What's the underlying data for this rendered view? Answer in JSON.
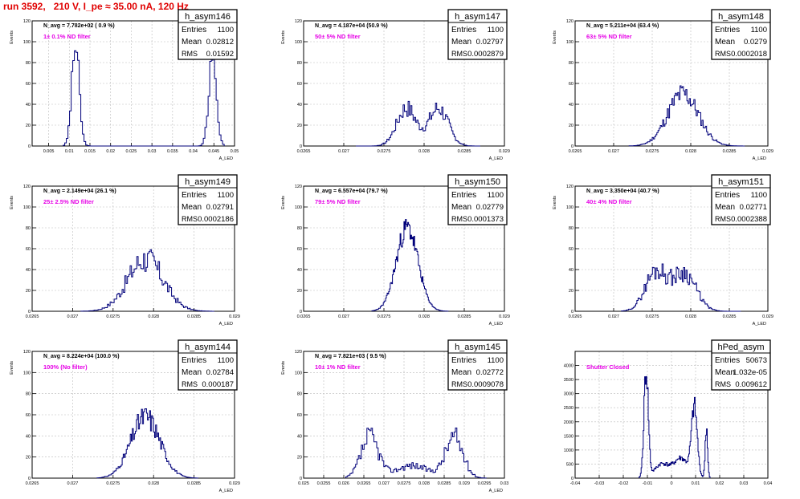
{
  "header": {
    "run_title": "run 3592,   210 V, I_pe ≈ 35.00 nA, 120 Hz"
  },
  "colors": {
    "title": "#e00000",
    "filter_label": "#e600e6",
    "histogram": "#00007a",
    "grid": "#bbbbbb",
    "axis": "#000000"
  },
  "chart_data": [
    {
      "type": "histogram",
      "name": "h_asym146",
      "navg": "N_avg = 7.782e+02 ( 0.9 %)",
      "filter": "1± 0.1% ND filter",
      "stats": {
        "entries_label": "Entries",
        "entries": "1100",
        "mean_label": "Mean",
        "mean": "0.02812",
        "rms_label": "RMS",
        "rms": "0.01592"
      },
      "xlabel": "A_LED",
      "ylabel": "Events",
      "xlim": [
        0.001,
        0.05
      ],
      "ylim": [
        0,
        120
      ],
      "xticks": [
        0.005,
        0.01,
        0.015,
        0.02,
        0.025,
        0.03,
        0.035,
        0.04,
        0.045,
        0.05
      ],
      "xtick_labels": [
        "0.005",
        "0.01",
        "0.015",
        "0.02",
        "0.025",
        "0.03",
        "0.035",
        "0.04",
        "0.045",
        "0.05"
      ],
      "yticks": [
        0,
        20,
        40,
        60,
        80,
        100,
        120
      ],
      "ytick_labels": [
        "0",
        "20",
        "40",
        "60",
        "80",
        "100",
        "120"
      ],
      "peaks": [
        {
          "center": 0.0115,
          "sigma": 0.0009,
          "height": 96
        },
        {
          "center": 0.0447,
          "sigma": 0.0009,
          "height": 92
        }
      ],
      "xrange": [
        0.0085,
        0.0475
      ],
      "bins": 100,
      "noise": 0.18,
      "seed": 3
    },
    {
      "type": "histogram",
      "name": "h_asym147",
      "navg": "N_avg = 4.187e+04 (50.9 %)",
      "filter": "50± 5% ND filter",
      "stats": {
        "entries_label": "Entries",
        "entries": "1100",
        "mean_label": "Mean",
        "mean": "0.02797",
        "rms_label": "RMS",
        "rms": "0.0002879"
      },
      "xlabel": "A_LED",
      "ylabel": "Events",
      "xlim": [
        0.0265,
        0.029
      ],
      "ylim": [
        0,
        120
      ],
      "xticks": [
        0.0265,
        0.027,
        0.0275,
        0.028,
        0.0285,
        0.029
      ],
      "xtick_labels": [
        "0.0265",
        "0.027",
        "0.0275",
        "0.028",
        "0.0285",
        "0.029"
      ],
      "yticks": [
        0,
        20,
        40,
        60,
        80,
        100,
        120
      ],
      "ytick_labels": [
        "0",
        "20",
        "40",
        "60",
        "80",
        "100",
        "120"
      ],
      "peaks": [
        {
          "center": 0.02778,
          "sigma": 0.00012,
          "height": 36
        },
        {
          "center": 0.02818,
          "sigma": 0.00012,
          "height": 36
        }
      ],
      "xrange": [
        0.02715,
        0.0287
      ],
      "bins": 100,
      "noise": 0.25,
      "seed": 7
    },
    {
      "type": "histogram",
      "name": "h_asym148",
      "navg": "N_avg = 5.211e+04 (63.4 %)",
      "filter": "63± 5% ND filter",
      "stats": {
        "entries_label": "Entries",
        "entries": "1100",
        "mean_label": "Mean",
        "mean": "0.0279",
        "rms_label": "RMS",
        "rms": "0.0002018"
      },
      "xlabel": "A_LED",
      "ylabel": "Events",
      "xlim": [
        0.0265,
        0.029
      ],
      "ylim": [
        0,
        120
      ],
      "xticks": [
        0.0265,
        0.027,
        0.0275,
        0.028,
        0.0285,
        0.029
      ],
      "xtick_labels": [
        "0.0265",
        "0.027",
        "0.0275",
        "0.028",
        "0.0285",
        "0.029"
      ],
      "yticks": [
        0,
        20,
        40,
        60,
        80,
        100,
        120
      ],
      "ytick_labels": [
        "0",
        "20",
        "40",
        "60",
        "80",
        "100",
        "120"
      ],
      "peaks": [
        {
          "center": 0.0279,
          "sigma": 0.0002,
          "height": 50
        }
      ],
      "xrange": [
        0.0272,
        0.0287
      ],
      "bins": 100,
      "noise": 0.22,
      "seed": 11
    },
    {
      "type": "histogram",
      "name": "h_asym149",
      "navg": "N_avg = 2.149e+04 (26.1 %)",
      "filter": "25± 2.5% ND filter",
      "stats": {
        "entries_label": "Entries",
        "entries": "1100",
        "mean_label": "Mean",
        "mean": "0.02791",
        "rms_label": "RMS",
        "rms": "0.0002186"
      },
      "xlabel": "A_LED",
      "ylabel": "Events",
      "xlim": [
        0.0265,
        0.029
      ],
      "ylim": [
        0,
        120
      ],
      "xticks": [
        0.0265,
        0.027,
        0.0275,
        0.028,
        0.0285,
        0.029
      ],
      "xtick_labels": [
        "0.0265",
        "0.027",
        "0.0275",
        "0.028",
        "0.0285",
        "0.029"
      ],
      "yticks": [
        0,
        20,
        40,
        60,
        80,
        100,
        120
      ],
      "ytick_labels": [
        "0",
        "20",
        "40",
        "60",
        "80",
        "100",
        "120"
      ],
      "peaks": [
        {
          "center": 0.0279,
          "sigma": 0.00022,
          "height": 50
        }
      ],
      "xrange": [
        0.0271,
        0.02875
      ],
      "bins": 100,
      "noise": 0.28,
      "seed": 17
    },
    {
      "type": "histogram",
      "name": "h_asym150",
      "navg": "N_avg = 6.557e+04 (79.7 %)",
      "filter": "79± 5% ND filter",
      "stats": {
        "entries_label": "Entries",
        "entries": "1100",
        "mean_label": "Mean",
        "mean": "0.02779",
        "rms_label": "RMS",
        "rms": "0.0001373"
      },
      "xlabel": "A_LED",
      "ylabel": "Events",
      "xlim": [
        0.0265,
        0.029
      ],
      "ylim": [
        0,
        120
      ],
      "xticks": [
        0.0265,
        0.027,
        0.0275,
        0.028,
        0.0285,
        0.029
      ],
      "xtick_labels": [
        "0.0265",
        "0.027",
        "0.0275",
        "0.028",
        "0.0285",
        "0.029"
      ],
      "yticks": [
        0,
        20,
        40,
        60,
        80,
        100,
        120
      ],
      "ytick_labels": [
        "0",
        "20",
        "40",
        "60",
        "80",
        "100",
        "120"
      ],
      "peaks": [
        {
          "center": 0.02779,
          "sigma": 0.000135,
          "height": 80
        }
      ],
      "xrange": [
        0.02735,
        0.0283
      ],
      "bins": 100,
      "noise": 0.14,
      "seed": 23
    },
    {
      "type": "histogram",
      "name": "h_asym151",
      "navg": "N_avg = 3.350e+04 (40.7 %)",
      "filter": "40± 4% ND filter",
      "stats": {
        "entries_label": "Entries",
        "entries": "1100",
        "mean_label": "Mean",
        "mean": "0.02771",
        "rms_label": "RMS",
        "rms": "0.0002388"
      },
      "xlabel": "A_LED",
      "ylabel": "Events",
      "xlim": [
        0.0265,
        0.029
      ],
      "ylim": [
        0,
        120
      ],
      "xticks": [
        0.0265,
        0.027,
        0.0275,
        0.028,
        0.0285,
        0.029
      ],
      "xtick_labels": [
        "0.0265",
        "0.027",
        "0.0275",
        "0.028",
        "0.0285",
        "0.029"
      ],
      "yticks": [
        0,
        20,
        40,
        60,
        80,
        100,
        120
      ],
      "ytick_labels": [
        "0",
        "20",
        "40",
        "60",
        "80",
        "100",
        "120"
      ],
      "peaks": [
        {
          "center": 0.02755,
          "sigma": 0.00014,
          "height": 38
        },
        {
          "center": 0.02792,
          "sigma": 0.00015,
          "height": 36
        }
      ],
      "xrange": [
        0.0271,
        0.02865
      ],
      "bins": 100,
      "noise": 0.25,
      "seed": 29
    },
    {
      "type": "histogram",
      "name": "h_asym144",
      "navg": "N_avg = 8.224e+04 (100.0 %)",
      "filter": "100% (No filter)",
      "stats": {
        "entries_label": "Entries",
        "entries": "1100",
        "mean_label": "Mean",
        "mean": "0.02784",
        "rms_label": "RMS",
        "rms": "0.000187"
      },
      "xlabel": "A_LED",
      "ylabel": "Events",
      "xlim": [
        0.0265,
        0.029
      ],
      "ylim": [
        0,
        120
      ],
      "xticks": [
        0.0265,
        0.027,
        0.0275,
        0.028,
        0.0285,
        0.029
      ],
      "xtick_labels": [
        "0.0265",
        "0.027",
        "0.0275",
        "0.028",
        "0.0285",
        "0.029"
      ],
      "yticks": [
        0,
        20,
        40,
        60,
        80,
        100,
        120
      ],
      "ytick_labels": [
        "0",
        "20",
        "40",
        "60",
        "80",
        "100",
        "120"
      ],
      "peaks": [
        {
          "center": 0.0279,
          "sigma": 0.00018,
          "height": 58
        }
      ],
      "xrange": [
        0.0273,
        0.02855
      ],
      "bins": 100,
      "noise": 0.2,
      "seed": 31
    },
    {
      "type": "histogram",
      "name": "h_asym145",
      "navg": "N_avg = 7.821e+03 ( 9.5 %)",
      "filter": "10± 1% ND filter",
      "stats": {
        "entries_label": "Entries",
        "entries": "1100",
        "mean_label": "Mean",
        "mean": "0.02772",
        "rms_label": "RMS",
        "rms": "0.0009078"
      },
      "xlabel": "A_LED",
      "ylabel": "Events",
      "xlim": [
        0.025,
        0.03
      ],
      "ylim": [
        0,
        120
      ],
      "xticks": [
        0.025,
        0.0255,
        0.026,
        0.0265,
        0.027,
        0.0275,
        0.028,
        0.0285,
        0.029,
        0.0295,
        0.03
      ],
      "xtick_labels": [
        "0.025",
        "0.0255",
        "0.026",
        "0.0265",
        "0.027",
        "0.0275",
        "0.028",
        "0.0285",
        "0.029",
        "0.0295",
        "0.03"
      ],
      "yticks": [
        0,
        20,
        40,
        60,
        80,
        100,
        120
      ],
      "ytick_labels": [
        "0",
        "20",
        "40",
        "60",
        "80",
        "100",
        "120"
      ],
      "peaks": [
        {
          "center": 0.02665,
          "sigma": 0.00022,
          "height": 38
        },
        {
          "center": 0.02875,
          "sigma": 0.00022,
          "height": 38
        },
        {
          "center": 0.0277,
          "sigma": 0.0004,
          "height": 12
        }
      ],
      "xrange": [
        0.02605,
        0.02955
      ],
      "bins": 100,
      "noise": 0.3,
      "seed": 37
    },
    {
      "type": "histogram",
      "name": "hPed_asym",
      "navg": "",
      "filter": "Shutter Closed",
      "stats": {
        "entries_label": "Entries",
        "entries": "50673",
        "mean_label": "Mean",
        "mean": "1.032e-05",
        "rms_label": "RMS",
        "rms": "0.009612"
      },
      "xlabel": "",
      "ylabel": "",
      "xlim": [
        -0.04,
        0.04
      ],
      "ylim": [
        0,
        4500
      ],
      "xticks": [
        -0.04,
        -0.03,
        -0.02,
        -0.01,
        0,
        0.01,
        0.02,
        0.03,
        0.04
      ],
      "xtick_labels": [
        "-0.04",
        "-0.03",
        "-0.02",
        "-0.01",
        "0",
        "0.01",
        "0.02",
        "0.03",
        "0.04"
      ],
      "yticks": [
        0,
        500,
        1000,
        1500,
        2000,
        2500,
        3000,
        3500,
        4000
      ],
      "ytick_labels": [
        "0",
        "500",
        "1000",
        "1500",
        "2000",
        "2500",
        "3000",
        "3500",
        "4000"
      ],
      "peaks": [
        {
          "center": -0.0105,
          "sigma": 0.0009,
          "height": 3800
        },
        {
          "center": 0.0095,
          "sigma": 0.0012,
          "height": 2400
        },
        {
          "center": 0.0145,
          "sigma": 0.0005,
          "height": 1800
        },
        {
          "center": -0.004,
          "sigma": 0.003,
          "height": 500
        },
        {
          "center": 0.004,
          "sigma": 0.003,
          "height": 700
        }
      ],
      "xrange": [
        -0.0135,
        0.016
      ],
      "bins": 100,
      "noise": 0.15,
      "seed": 41
    }
  ]
}
